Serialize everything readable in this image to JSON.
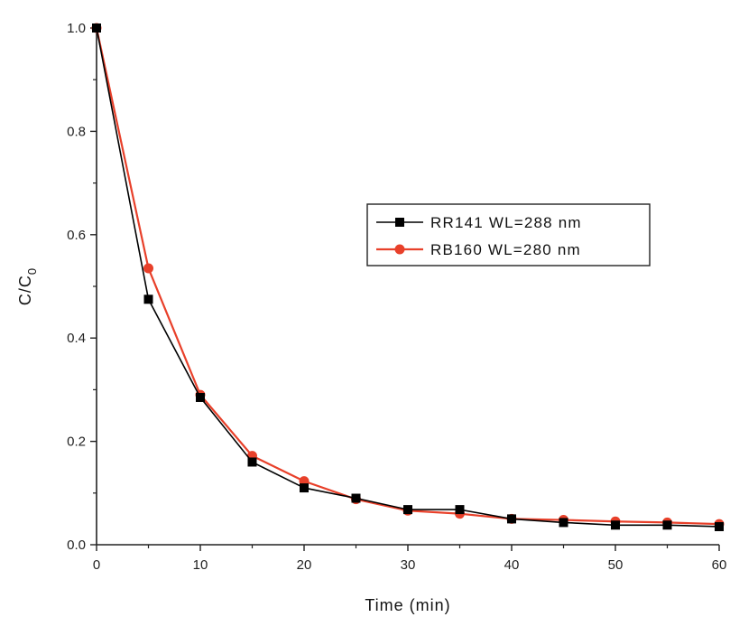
{
  "chart_data": {
    "type": "line",
    "xlabel": "Time (min)",
    "ylabel": "C/C",
    "ylabel_sub": "0",
    "xlim": [
      0,
      60
    ],
    "ylim": [
      0.0,
      1.0
    ],
    "xticks": [
      0,
      10,
      20,
      30,
      40,
      50,
      60
    ],
    "xtick_labels": [
      "0",
      "10",
      "20",
      "30",
      "40",
      "50",
      "60"
    ],
    "yticks": [
      0.0,
      0.2,
      0.4,
      0.6,
      0.8,
      1.0
    ],
    "ytick_labels": [
      "0.0",
      "0.2",
      "0.4",
      "0.6",
      "0.8",
      "1.0"
    ],
    "grid": false,
    "legend_position": "center-right",
    "x": [
      0,
      5,
      10,
      15,
      20,
      25,
      30,
      35,
      40,
      45,
      50,
      55,
      60
    ],
    "series": [
      {
        "name": "RR141 WL=288 nm",
        "color": "#000000",
        "marker": "square",
        "values": [
          1.0,
          0.475,
          0.285,
          0.16,
          0.11,
          0.09,
          0.068,
          0.068,
          0.05,
          0.043,
          0.038,
          0.038,
          0.035
        ]
      },
      {
        "name": "RB160 WL=280 nm",
        "color": "#e8402a",
        "marker": "circle",
        "values": [
          1.0,
          0.535,
          0.29,
          0.172,
          0.123,
          0.088,
          0.066,
          0.06,
          0.05,
          0.048,
          0.045,
          0.043,
          0.04
        ]
      }
    ]
  }
}
